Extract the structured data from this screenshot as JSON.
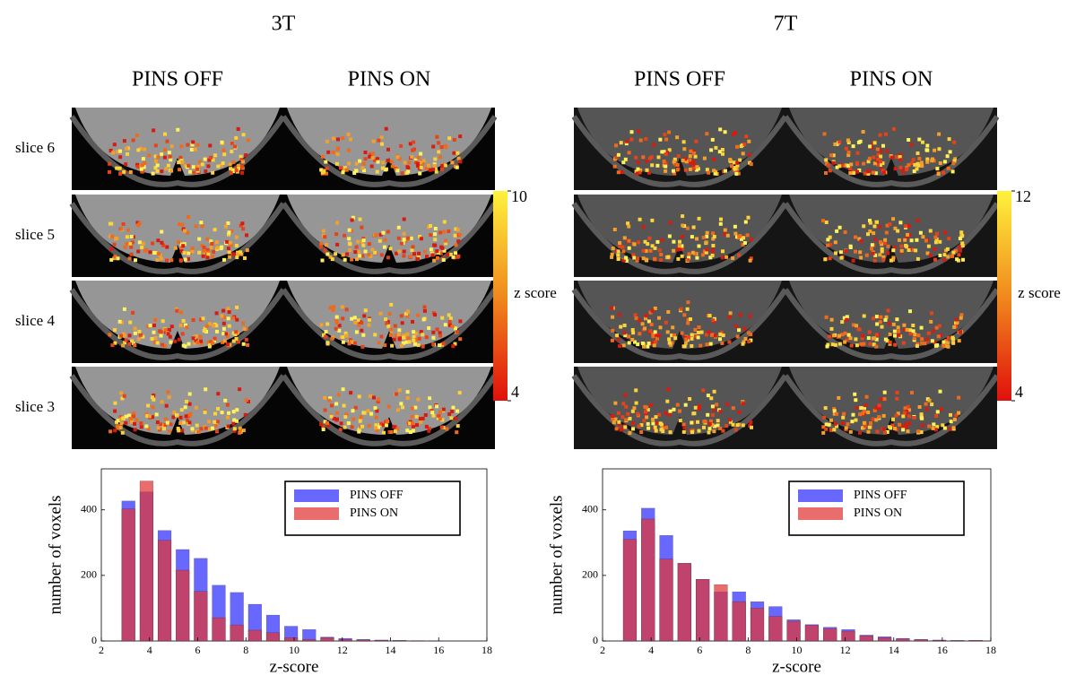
{
  "figure": {
    "rows": [
      "slice 6",
      "slice 5",
      "slice 4",
      "slice 3"
    ],
    "groups": [
      {
        "title": "3T",
        "columns": [
          "PINS OFF",
          "PINS ON"
        ],
        "colorbar": {
          "label": "z score",
          "lim": [
            4,
            10
          ],
          "ticks": [
            4,
            10
          ]
        }
      },
      {
        "title": "7T",
        "columns": [
          "PINS OFF",
          "PINS ON"
        ],
        "colorbar": {
          "label": "z score",
          "lim": [
            4,
            12
          ],
          "ticks": [
            4,
            12
          ]
        }
      }
    ]
  },
  "chart_data": [
    {
      "type": "bar",
      "xlabel": "z-score",
      "ylabel": "number of voxels",
      "x": [
        3.125,
        3.875,
        4.625,
        5.375,
        6.125,
        6.875,
        7.625,
        8.375,
        9.125,
        9.875,
        10.625,
        11.375,
        12.125,
        12.875,
        13.625,
        14.375,
        15.125,
        15.875,
        16.625,
        17.375
      ],
      "series": [
        {
          "name": "PINS OFF",
          "color": "#4d4dff",
          "values": [
            427,
            455,
            337,
            279,
            252,
            170,
            148,
            112,
            79,
            45,
            35,
            12,
            8,
            5,
            3,
            2,
            1,
            1,
            0,
            0
          ]
        },
        {
          "name": "PINS ON",
          "color": "#e23434",
          "values": [
            403,
            488,
            307,
            216,
            151,
            71,
            49,
            33,
            25,
            10,
            5,
            10,
            5,
            3,
            2,
            1,
            1,
            0,
            0,
            0
          ]
        }
      ],
      "xlim": [
        2,
        18
      ],
      "xticks": [
        2,
        4,
        6,
        8,
        10,
        12,
        14,
        16,
        18
      ],
      "ylim": [
        0,
        525
      ],
      "yticks": [
        0,
        200,
        400
      ],
      "legend": "upper right"
    },
    {
      "type": "bar",
      "xlabel": "z-score",
      "ylabel": "number of voxels",
      "x": [
        3.125,
        3.875,
        4.625,
        5.375,
        6.125,
        6.875,
        7.625,
        8.375,
        9.125,
        9.875,
        10.625,
        11.375,
        12.125,
        12.875,
        13.625,
        14.375,
        15.125,
        15.875,
        16.625,
        17.375
      ],
      "series": [
        {
          "name": "PINS OFF",
          "color": "#4d4dff",
          "values": [
            336,
            405,
            322,
            237,
            188,
            150,
            150,
            120,
            105,
            65,
            50,
            42,
            35,
            18,
            13,
            8,
            5,
            3,
            2,
            2
          ]
        },
        {
          "name": "PINS ON",
          "color": "#e23434",
          "values": [
            310,
            372,
            250,
            237,
            188,
            172,
            120,
            100,
            75,
            60,
            48,
            38,
            30,
            16,
            10,
            6,
            4,
            2,
            1,
            2
          ]
        }
      ],
      "xlim": [
        2,
        18
      ],
      "xticks": [
        2,
        4,
        6,
        8,
        10,
        12,
        14,
        16,
        18
      ],
      "ylim": [
        0,
        525
      ],
      "yticks": [
        0,
        200,
        400
      ],
      "legend": "upper right"
    }
  ]
}
